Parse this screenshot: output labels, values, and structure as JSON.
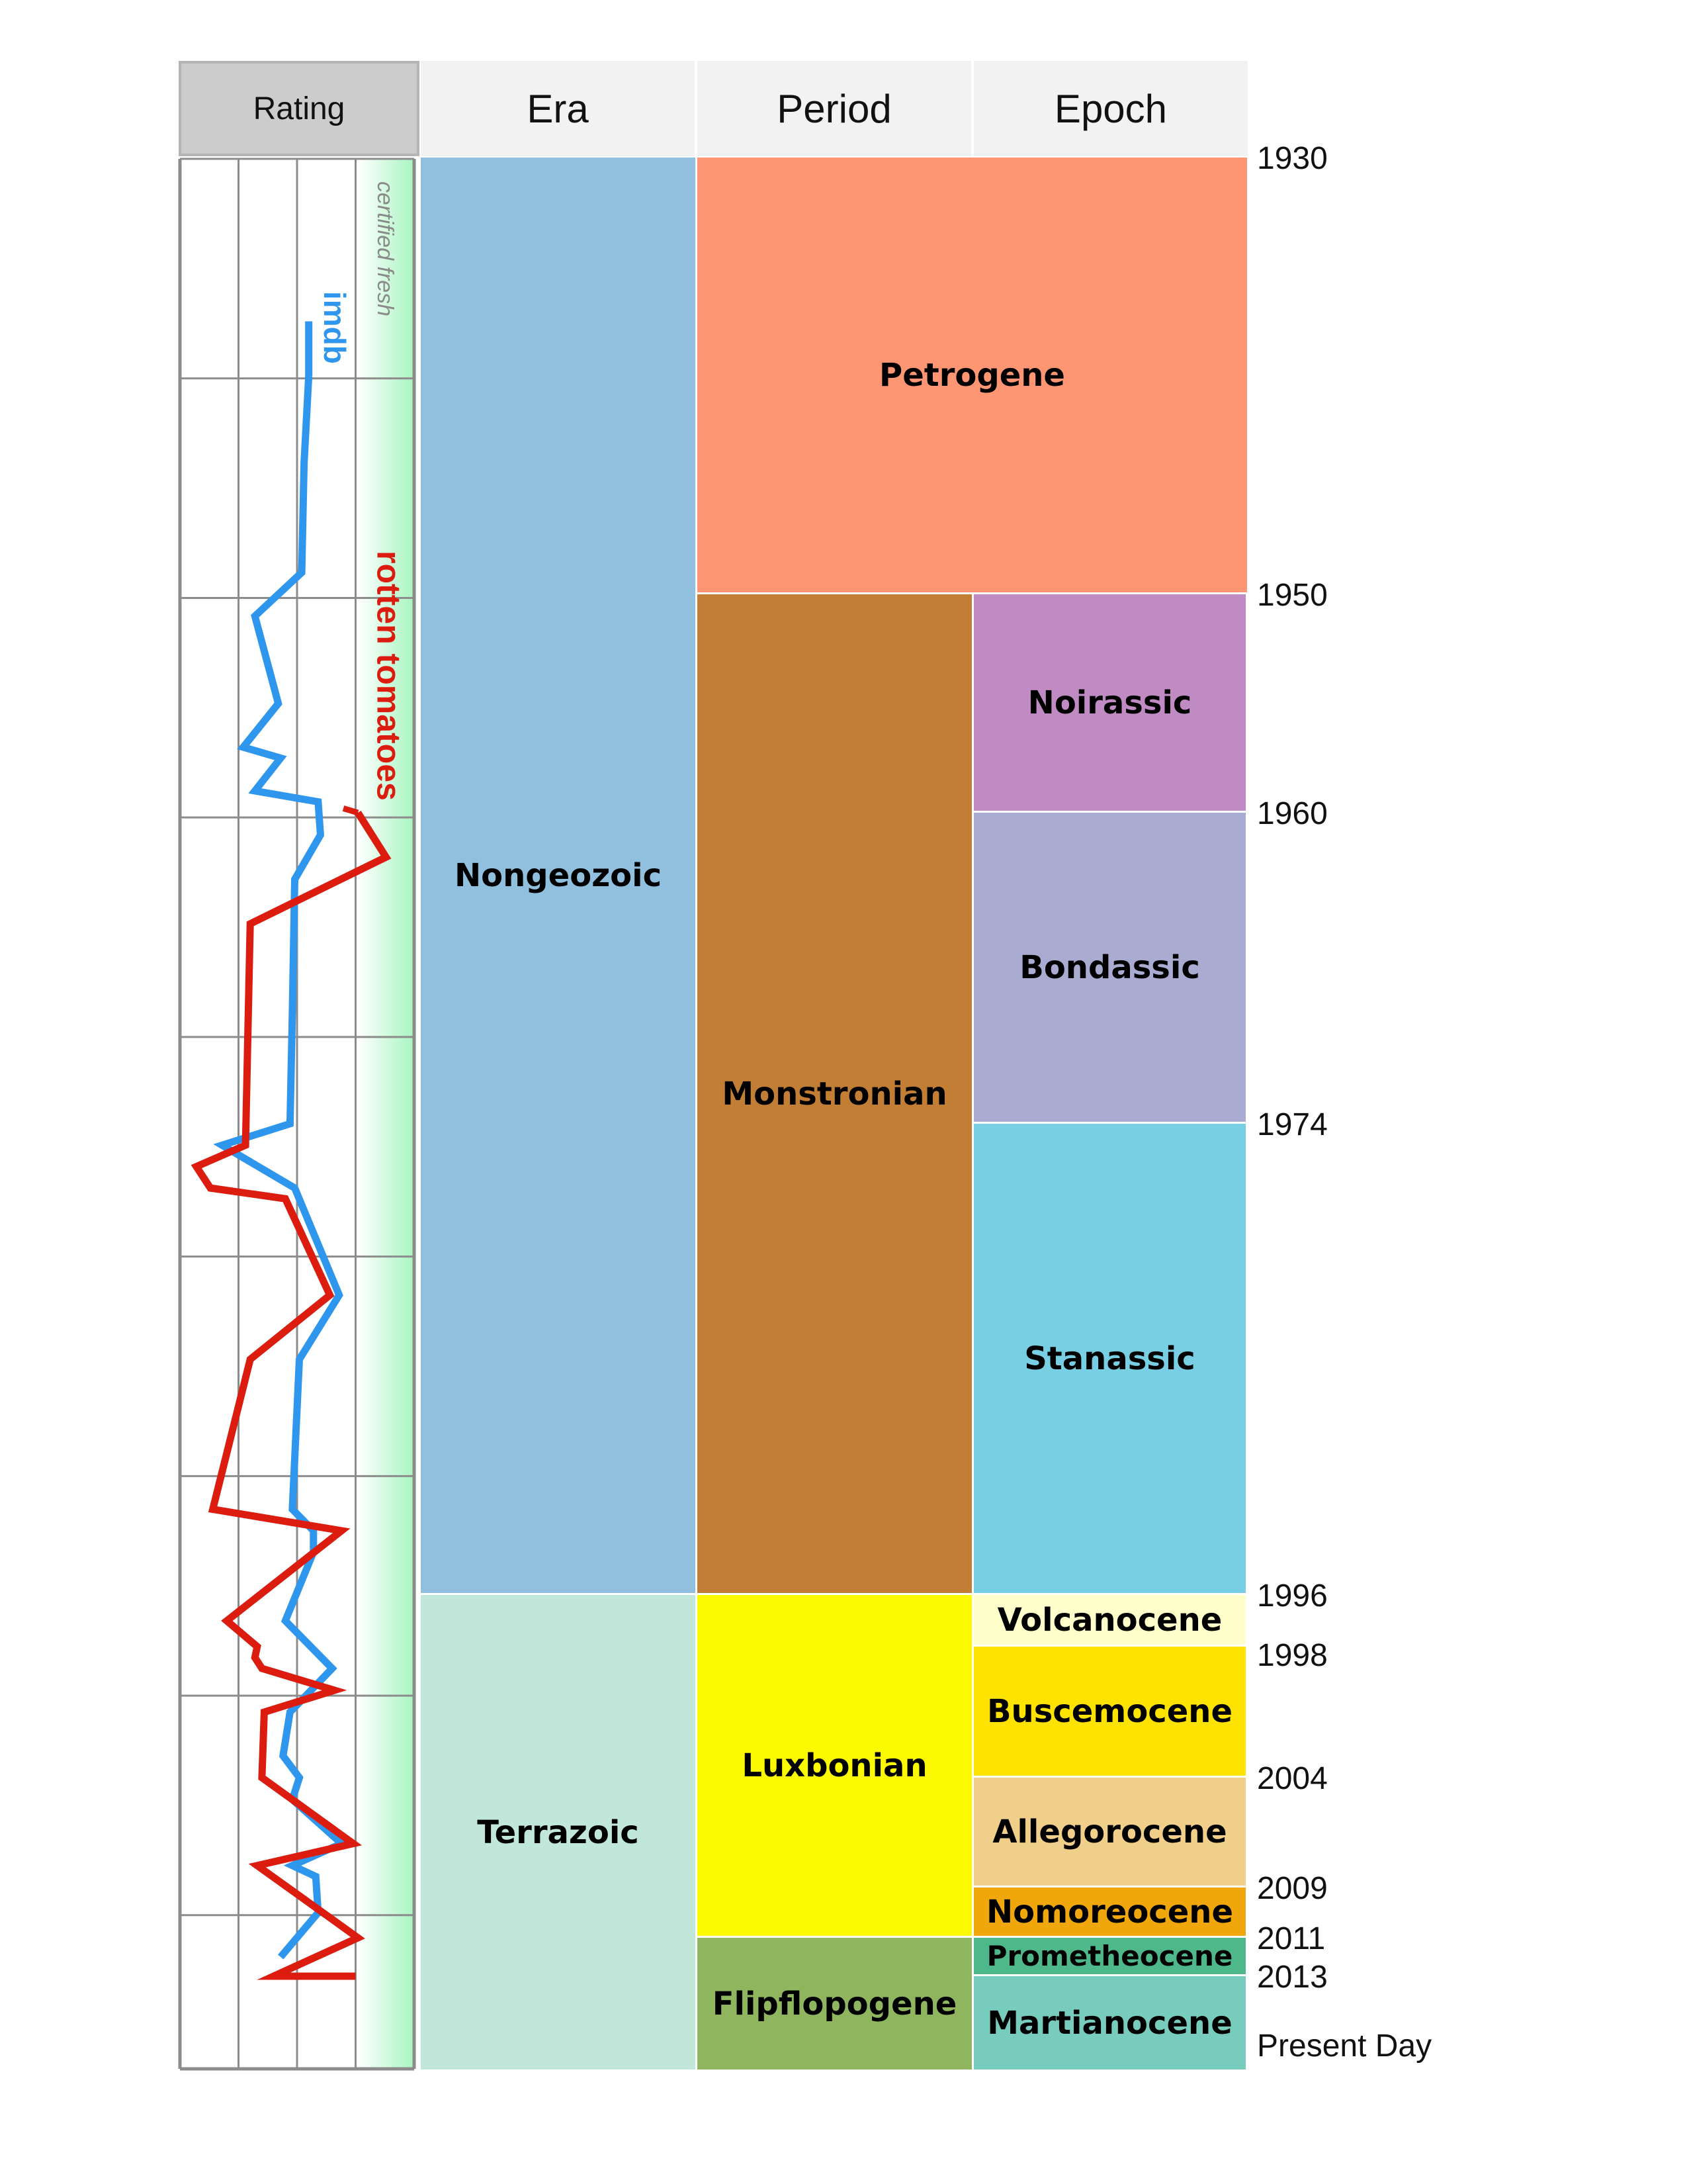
{
  "headers": {
    "rating": "Rating",
    "era": "Era",
    "period": "Period",
    "epoch": "Epoch"
  },
  "rating_labels": {
    "certified": "certified fresh",
    "imdb": "imdb",
    "rt": "rotten tomatoes"
  },
  "colors": {
    "imdb": "#2f96ee",
    "rt": "#dd1c10",
    "fresh_band": "#a8f5c0",
    "grid": "#8c8c8c",
    "nongeozoic": "#91c0de",
    "terrazoic": "#c0e7da",
    "petrogene": "#fe9673",
    "monstronian": "#c27e34",
    "luxbonian": "#fcfa00",
    "flipflopogene": "#8fb65e",
    "noirassic": "#c08ac3",
    "bondassic": "#a9abd1",
    "stanassic": "#78cfe3",
    "volcanocene": "#ffffcc",
    "buscemocene": "#fee300",
    "allegorocene": "#f0cf8a",
    "nomoreocene": "#f0a70b",
    "prometheocene": "#4eb88b",
    "martianocene": "#78ccbe"
  },
  "eras": [
    {
      "name": "Nongeozoic",
      "color": "#91c0de",
      "start": 1930,
      "end": 1996
    },
    {
      "name": "Terrazoic",
      "color": "#c0e7da",
      "start": 1996,
      "end": 2018
    }
  ],
  "periods": [
    {
      "name": "Petrogene",
      "color": "#fe9673",
      "start": 1930,
      "end": 1950,
      "span": true
    },
    {
      "name": "Monstronian",
      "color": "#c27e34",
      "start": 1950,
      "end": 1996
    },
    {
      "name": "Luxbonian",
      "color": "#fcfa00",
      "start": 1996,
      "end": 2011
    },
    {
      "name": "Flipflopogene",
      "color": "#8fb65e",
      "start": 2011,
      "end": 2018
    }
  ],
  "epochs": [
    {
      "name": "Noirassic",
      "color": "#c08ac3",
      "start": 1950,
      "end": 1960
    },
    {
      "name": "Bondassic",
      "color": "#a9abd1",
      "start": 1960,
      "end": 1974
    },
    {
      "name": "Stanassic",
      "color": "#78cfe3",
      "start": 1974,
      "end": 1996
    },
    {
      "name": "Volcanocene",
      "color": "#ffffcc",
      "start": 1996,
      "end": 1998
    },
    {
      "name": "Buscemocene",
      "color": "#fee300",
      "start": 1998,
      "end": 2004
    },
    {
      "name": "Allegorocene",
      "color": "#f0cf8a",
      "start": 2004,
      "end": 2009
    },
    {
      "name": "Nomoreocene",
      "color": "#f0a70b",
      "start": 2009,
      "end": 2011
    },
    {
      "name": "Prometheocene",
      "color": "#4eb88b",
      "start": 2011,
      "end": 2013
    },
    {
      "name": "Martianocene",
      "color": "#78ccbe",
      "start": 2013,
      "end": 2018
    }
  ],
  "year_labels": [
    "1930",
    "1950",
    "1960",
    "1974",
    "1996",
    "1998",
    "2004",
    "2009",
    "2011",
    "2013",
    "Present Day"
  ],
  "chart_data": {
    "type": "line",
    "ylabel": "",
    "xlabel": "Rating",
    "series": [
      {
        "name": "imdb",
        "points": [
          [
            1940,
            0.55
          ],
          [
            1944,
            0.53
          ],
          [
            1949,
            0.52
          ],
          [
            1951,
            0.32
          ],
          [
            1955,
            0.42
          ],
          [
            1957,
            0.27
          ],
          [
            1957.5,
            0.43
          ],
          [
            1959,
            0.32
          ],
          [
            1959.5,
            0.59
          ],
          [
            1961,
            0.6
          ],
          [
            1963,
            0.49
          ],
          [
            1969,
            0.48
          ],
          [
            1974,
            0.47
          ],
          [
            1975,
            0.18
          ],
          [
            1977,
            0.49
          ],
          [
            1982,
            0.68
          ],
          [
            1985,
            0.51
          ],
          [
            1992,
            0.48
          ],
          [
            1993,
            0.57
          ],
          [
            1994,
            0.57
          ],
          [
            1997,
            0.45
          ],
          [
            1999,
            0.65
          ],
          [
            2001,
            0.47
          ],
          [
            2003,
            0.44
          ],
          [
            2004,
            0.51
          ],
          [
            2005,
            0.48
          ],
          [
            2007,
            0.69
          ],
          [
            2008,
            0.48
          ],
          [
            2008.5,
            0.58
          ],
          [
            2010,
            0.59
          ],
          [
            2012,
            0.43
          ]
        ]
      },
      {
        "name": "rotten tomatoes",
        "points": [
          [
            1960,
            0.76
          ],
          [
            1962,
            0.88
          ],
          [
            1965,
            0.3
          ],
          [
            1975,
            0.28
          ],
          [
            1976,
            0.07
          ],
          [
            1977,
            0.13
          ],
          [
            1977.5,
            0.45
          ],
          [
            1982,
            0.64
          ],
          [
            1985,
            0.3
          ],
          [
            1992,
            0.14
          ],
          [
            1993,
            0.69
          ],
          [
            1997,
            0.2
          ],
          [
            1998,
            0.33
          ],
          [
            1998.5,
            0.32
          ],
          [
            1999,
            0.35
          ],
          [
            2000,
            0.66
          ],
          [
            2001,
            0.36
          ],
          [
            2004,
            0.35
          ],
          [
            2007,
            0.74
          ],
          [
            2008,
            0.33
          ],
          [
            2011,
            0.76
          ],
          [
            2013,
            0.4
          ],
          [
            2013,
            0.75
          ]
        ]
      }
    ]
  }
}
